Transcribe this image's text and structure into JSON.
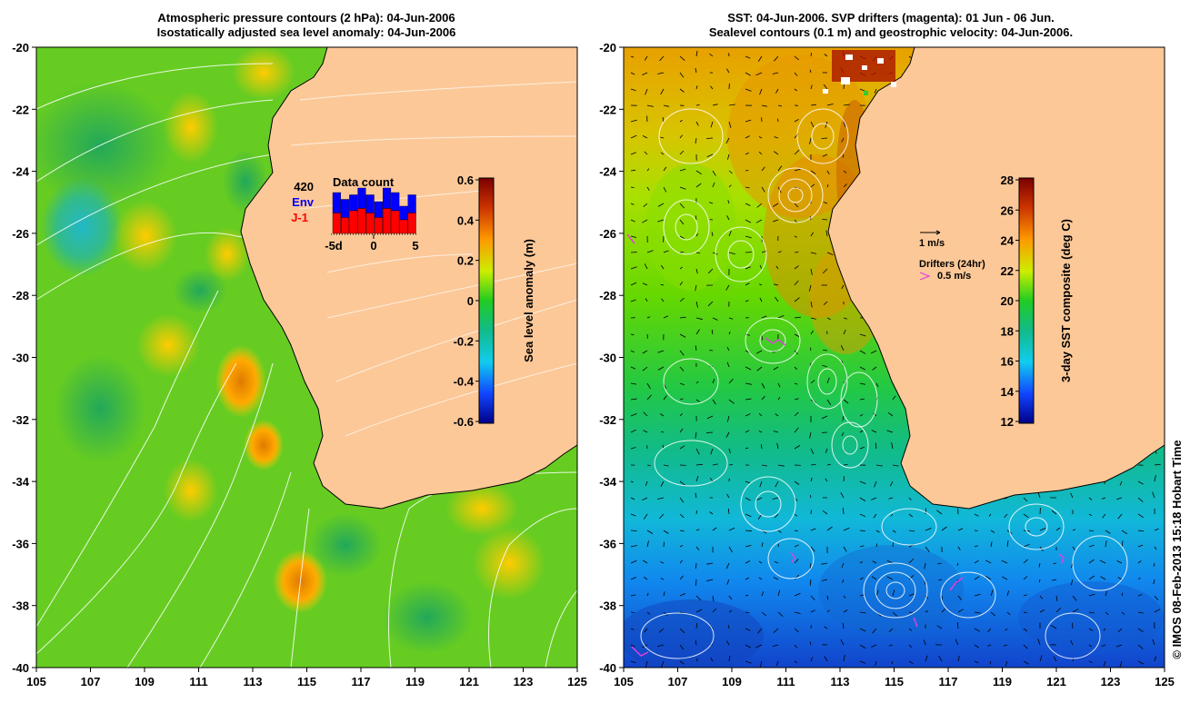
{
  "left_panel": {
    "title_line1": "Atmospheric pressure contours (2 hPa): 04-Jun-2006",
    "title_line2": "Isostatically adjusted sea level anomaly: 04-Jun-2006",
    "y_ticks": [
      "-20",
      "-22",
      "-24",
      "-26",
      "-28",
      "-30",
      "-32",
      "-34",
      "-36",
      "-38",
      "-40"
    ],
    "x_ticks": [
      "105",
      "107",
      "109",
      "111",
      "113",
      "115",
      "117",
      "119",
      "121",
      "123",
      "125"
    ],
    "colorbar": {
      "label": "Sea level anomaly (m)",
      "ticks": [
        "0.6",
        "0.4",
        "0.2",
        "0",
        "-0.2",
        "-0.4",
        "-0.6"
      ]
    },
    "inset": {
      "title": "Data count",
      "count": "420",
      "env_label": "Env",
      "j1_label": "J-1",
      "xtick_left": "-5d",
      "xtick_mid": "0",
      "xtick_right": "5",
      "env_color": "#0000ff",
      "j1_color": "#ff0000",
      "bars": [
        {
          "env": 0.9,
          "j1": 0.45
        },
        {
          "env": 0.75,
          "j1": 0.35
        },
        {
          "env": 0.85,
          "j1": 0.5
        },
        {
          "env": 1.0,
          "j1": 0.55
        },
        {
          "env": 0.85,
          "j1": 0.45
        },
        {
          "env": 0.7,
          "j1": 0.35
        },
        {
          "env": 1.0,
          "j1": 0.55
        },
        {
          "env": 0.9,
          "j1": 0.5
        },
        {
          "env": 0.6,
          "j1": 0.3
        },
        {
          "env": 0.85,
          "j1": 0.45
        }
      ]
    }
  },
  "right_panel": {
    "title_line1": "SST: 04-Jun-2006. SVP drifters (magenta): 01 Jun - 06 Jun.",
    "title_line2": "Sealevel contours (0.1 m) and geostrophic velocity: 04-Jun-2006.",
    "y_ticks": [
      "-20",
      "-22",
      "-24",
      "-26",
      "-28",
      "-30",
      "-32",
      "-34",
      "-36",
      "-38",
      "-40"
    ],
    "x_ticks": [
      "105",
      "107",
      "109",
      "111",
      "113",
      "115",
      "117",
      "119",
      "121",
      "123",
      "125"
    ],
    "colorbar": {
      "label": "3-day SST composite (deg C)",
      "ticks": [
        "28",
        "26",
        "24",
        "22",
        "20",
        "18",
        "16",
        "14",
        "12"
      ]
    },
    "legend": {
      "velocity_scale": "1 m/s",
      "drifters_title": "Drifters (24hr)",
      "drifters_scale": "0.5 m/s",
      "drifter_color": "#e040e0"
    }
  },
  "credit": "© IMOS 08-Feb-2013 15:18 Hobart Time",
  "colors": {
    "land": "#fcc898"
  }
}
